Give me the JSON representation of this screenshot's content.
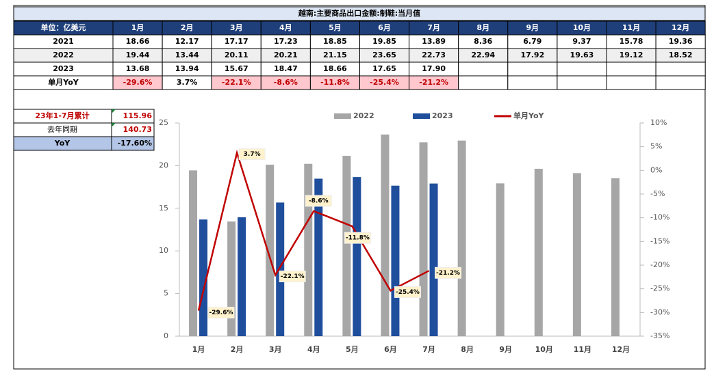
{
  "table": {
    "title": "越南:主要商品出口金额:制鞋:当月值",
    "header": [
      "单位：亿美元",
      "1月",
      "2月",
      "3月",
      "4月",
      "5月",
      "6月",
      "7月",
      "8月",
      "9月",
      "10月",
      "11月",
      "12月"
    ],
    "rows": [
      [
        "2021",
        "18.66",
        "12.17",
        "17.17",
        "17.23",
        "18.85",
        "19.85",
        "13.89",
        "8.36",
        "6.79",
        "9.37",
        "15.78",
        "19.36"
      ],
      [
        "2022",
        "19.44",
        "13.44",
        "20.11",
        "20.21",
        "21.15",
        "23.65",
        "22.73",
        "22.94",
        "17.92",
        "19.63",
        "19.12",
        "18.52"
      ],
      [
        "2023",
        "13.68",
        "13.94",
        "15.67",
        "18.47",
        "18.66",
        "17.65",
        "17.90",
        null,
        null,
        null,
        null,
        null
      ],
      [
        "单月YoY",
        "-29.6%",
        "3.7%",
        "-22.1%",
        "-8.6%",
        "-11.8%",
        "-25.4%",
        "-21.2%",
        null,
        null,
        null,
        null,
        null
      ]
    ]
  },
  "summary": {
    "rows": [
      [
        "23年1-7月累计",
        "115.96"
      ],
      [
        "去年同期",
        "140.73"
      ],
      [
        "YoY",
        "-17.60%"
      ]
    ]
  },
  "chart_data": {
    "type": "bar",
    "categories": [
      "1月",
      "2月",
      "3月",
      "4月",
      "5月",
      "6月",
      "7月",
      "8月",
      "9月",
      "10月",
      "11月",
      "12月"
    ],
    "series": [
      {
        "name": "2022",
        "color": "#a6a6a6",
        "values": [
          19.44,
          13.44,
          20.11,
          20.21,
          21.15,
          23.65,
          22.73,
          22.94,
          17.92,
          19.63,
          19.12,
          18.52
        ]
      },
      {
        "name": "2023",
        "color": "#1f4e9c",
        "values": [
          13.68,
          13.94,
          15.67,
          18.47,
          18.66,
          17.65,
          17.9,
          null,
          null,
          null,
          null,
          null
        ]
      },
      {
        "name": "单月YoY",
        "type": "line",
        "axis": "y2",
        "color": "#c00000",
        "values": [
          -29.6,
          3.7,
          -22.1,
          -8.6,
          -11.8,
          -25.4,
          -21.2,
          null,
          null,
          null,
          null,
          null
        ],
        "value_labels": [
          "-29.6%",
          "3.7%",
          "-22.1%",
          "-8.6%",
          "-11.8%",
          "-25.4%",
          "-21.2%",
          null,
          null,
          null,
          null,
          null
        ]
      }
    ],
    "ylim": [
      0,
      25
    ],
    "yticks": [
      0,
      5,
      10,
      15,
      20,
      25
    ],
    "y2lim": [
      -35,
      10
    ],
    "y2ticks": [
      {
        "value": -35,
        "label": "-35%"
      },
      {
        "value": -30,
        "label": "-30%"
      },
      {
        "value": -25,
        "label": "-25%"
      },
      {
        "value": -20,
        "label": "-20%"
      },
      {
        "value": -15,
        "label": "-15%"
      },
      {
        "value": -10,
        "label": "-10%"
      },
      {
        "value": -5,
        "label": "-5%"
      },
      {
        "value": 0,
        "label": "0%"
      },
      {
        "value": 5,
        "label": "5%"
      },
      {
        "value": 10,
        "label": "10%"
      }
    ],
    "legend": "top"
  }
}
